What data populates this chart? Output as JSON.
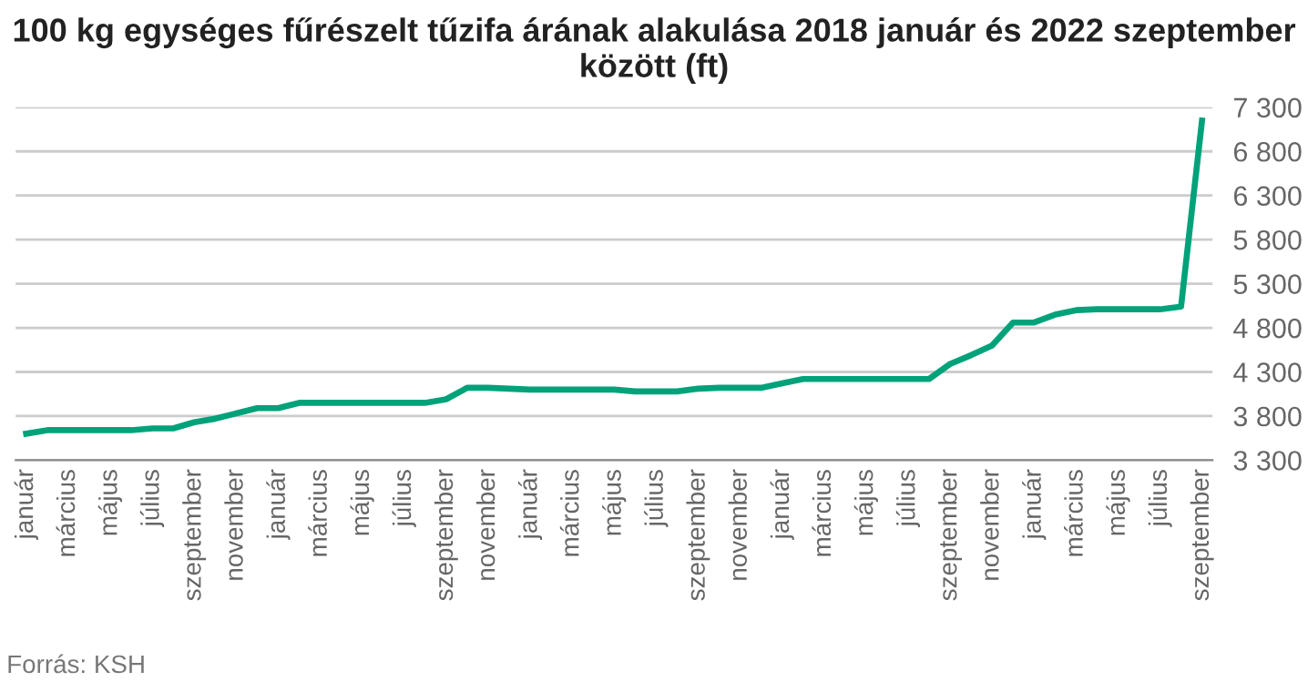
{
  "chart_data": {
    "type": "line",
    "title": "100 kg egységes fűrészelt tűzifa árának alakulása 2018 január és 2022 szeptember között (ft)",
    "categories": [
      "január",
      null,
      "március",
      null,
      "május",
      null,
      "július",
      null,
      "szeptember",
      null,
      "november",
      null,
      "január",
      null,
      "március",
      null,
      "május",
      null,
      "július",
      null,
      "szeptember",
      null,
      "november",
      null,
      "január",
      null,
      "március",
      null,
      "május",
      null,
      "július",
      null,
      "szeptember",
      null,
      "november",
      null,
      "január",
      null,
      "március",
      null,
      "május",
      null,
      "július",
      null,
      "szeptember",
      null,
      "november",
      null,
      "január",
      null,
      "március",
      null,
      "május",
      null,
      "július",
      null,
      "szeptember"
    ],
    "series": [
      {
        "color": "#00a27a",
        "values": [
          3600,
          3640,
          3640,
          3640,
          3640,
          3640,
          3660,
          3660,
          3730,
          3770,
          3830,
          3890,
          3890,
          3950,
          3950,
          3950,
          3950,
          3950,
          3950,
          3950,
          3990,
          4120,
          4120,
          4110,
          4100,
          4100,
          4100,
          4100,
          4100,
          4080,
          4080,
          4080,
          4110,
          4120,
          4120,
          4120,
          4170,
          4220,
          4220,
          4220,
          4220,
          4220,
          4220,
          4220,
          4390,
          4490,
          4600,
          4860,
          4860,
          4950,
          5000,
          5010,
          5010,
          5010,
          5010,
          5040,
          7150
        ]
      }
    ],
    "ylim": [
      3300,
      7300
    ],
    "yticks": [
      {
        "value": 3300,
        "label": "3 300"
      },
      {
        "value": 3800,
        "label": "3 800"
      },
      {
        "value": 4300,
        "label": "4 300"
      },
      {
        "value": 4800,
        "label": "4 800"
      },
      {
        "value": 5300,
        "label": "5 300"
      },
      {
        "value": 5800,
        "label": "5 800"
      },
      {
        "value": 6300,
        "label": "6 300"
      },
      {
        "value": 6800,
        "label": "6 800"
      },
      {
        "value": 7300,
        "label": "7 300"
      }
    ],
    "grid": "y",
    "annotations": [
      "Forrás: KSH"
    ]
  }
}
